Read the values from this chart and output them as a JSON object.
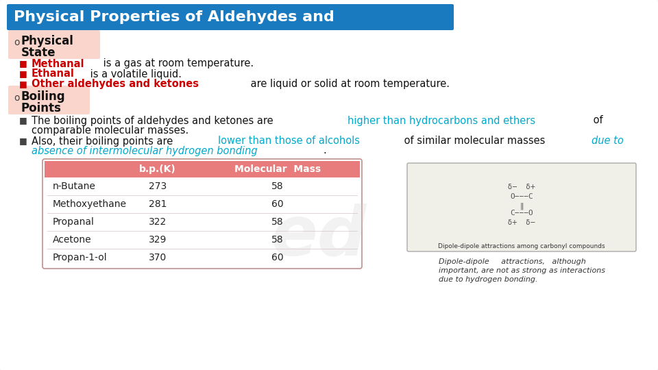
{
  "title": "Physical Properties of Aldehydes and",
  "title_bg": "#1a7abf",
  "title_color": "#ffffff",
  "bg_color": "#ffffff",
  "slide_border_color": "#bbbbbb",
  "section1_bg": "#f9d5cb",
  "section2_bg": "#f9d5cb",
  "bullet_color": "#cc0000",
  "red_color": "#cc0000",
  "cyan_color": "#00aacc",
  "table_header_bg": "#e87b7b",
  "table_header_color": "#ffffff",
  "table_bg": "#ffffff",
  "table_columns": [
    "",
    "b.p.(K)",
    "Molecular  Mass"
  ],
  "table_rows": [
    [
      "n-Butane",
      "273",
      "58"
    ],
    [
      "Methoxyethane",
      "281",
      "60"
    ],
    [
      "Propanal",
      "322",
      "58"
    ],
    [
      "Acetone",
      "329",
      "58"
    ],
    [
      "Propan-1-ol",
      "370",
      "60"
    ]
  ],
  "caption_text": "Dipole-dipole     attractions,   although\nimportant, are not as strong as interactions\ndue to hydrogen bonding.",
  "watermark_text": "ed",
  "watermark_color": "#cccccc"
}
